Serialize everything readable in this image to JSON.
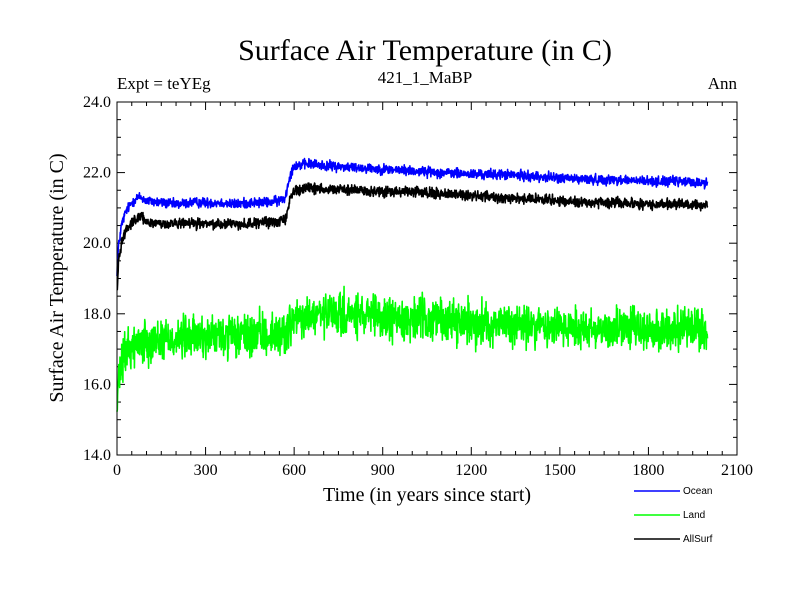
{
  "chart_data": {
    "type": "line",
    "title": "Surface Air Temperature (in C)",
    "subtitle": "421_1_MaBP",
    "left_note": "Expt = teYEg",
    "right_note": "Ann",
    "xlabel": "Time (in years since start)",
    "ylabel": "Surface Air Temperature (in C)",
    "xlim": [
      0,
      2100
    ],
    "ylim": [
      14.0,
      24.0
    ],
    "x_ticks": [
      0,
      300,
      600,
      900,
      1200,
      1500,
      1800,
      2100
    ],
    "x_tick_labels": [
      "0",
      "300",
      "600",
      "900",
      "1200",
      "1500",
      "1800",
      "2100"
    ],
    "y_ticks": [
      14.0,
      16.0,
      18.0,
      20.0,
      22.0,
      24.0
    ],
    "y_tick_labels": [
      "14.0",
      "16.0",
      "18.0",
      "20.0",
      "22.0",
      "24.0"
    ],
    "legend_position": "bottom-right, outside plot",
    "series": [
      {
        "name": "Ocean",
        "color": "#0000ff",
        "noise_amplitude": 0.07,
        "x": [
          0,
          5,
          15,
          30,
          50,
          70,
          80,
          100,
          150,
          200,
          250,
          300,
          350,
          400,
          450,
          500,
          550,
          570,
          585,
          600,
          650,
          700,
          800,
          900,
          1000,
          1100,
          1200,
          1300,
          1400,
          1500,
          1600,
          1700,
          1800,
          1900,
          2000
        ],
        "values": [
          19.2,
          19.9,
          20.5,
          20.9,
          21.15,
          21.3,
          21.3,
          21.2,
          21.15,
          21.1,
          21.15,
          21.15,
          21.15,
          21.1,
          21.15,
          21.15,
          21.2,
          21.3,
          21.9,
          22.2,
          22.25,
          22.2,
          22.15,
          22.1,
          22.05,
          22.0,
          21.95,
          21.95,
          21.9,
          21.85,
          21.8,
          21.8,
          21.75,
          21.75,
          21.7
        ]
      },
      {
        "name": "Land",
        "color": "#00ff00",
        "noise_amplitude": 0.3,
        "x": [
          0,
          5,
          15,
          30,
          50,
          80,
          100,
          200,
          300,
          400,
          500,
          550,
          580,
          600,
          650,
          700,
          800,
          900,
          1000,
          1100,
          1200,
          1300,
          1400,
          1500,
          1600,
          1700,
          1800,
          1900,
          2000
        ],
        "values": [
          15.3,
          16.0,
          16.5,
          16.9,
          17.1,
          17.2,
          17.25,
          17.3,
          17.35,
          17.35,
          17.4,
          17.4,
          17.6,
          17.8,
          17.9,
          17.95,
          17.95,
          17.85,
          17.85,
          17.85,
          17.75,
          17.7,
          17.65,
          17.65,
          17.6,
          17.6,
          17.55,
          17.55,
          17.5
        ]
      },
      {
        "name": "AllSurf",
        "color": "#000000",
        "noise_amplitude": 0.07,
        "x": [
          0,
          5,
          15,
          30,
          50,
          70,
          80,
          100,
          150,
          200,
          250,
          300,
          350,
          400,
          450,
          500,
          550,
          570,
          585,
          600,
          650,
          700,
          800,
          900,
          1000,
          1100,
          1200,
          1300,
          1400,
          1500,
          1600,
          1700,
          1800,
          1900,
          2000
        ],
        "values": [
          18.6,
          19.5,
          20.0,
          20.4,
          20.6,
          20.7,
          20.75,
          20.6,
          20.55,
          20.55,
          20.55,
          20.55,
          20.55,
          20.55,
          20.55,
          20.6,
          20.6,
          20.7,
          21.2,
          21.5,
          21.55,
          21.55,
          21.5,
          21.45,
          21.45,
          21.4,
          21.35,
          21.3,
          21.25,
          21.2,
          21.15,
          21.15,
          21.1,
          21.1,
          21.05
        ]
      }
    ]
  }
}
